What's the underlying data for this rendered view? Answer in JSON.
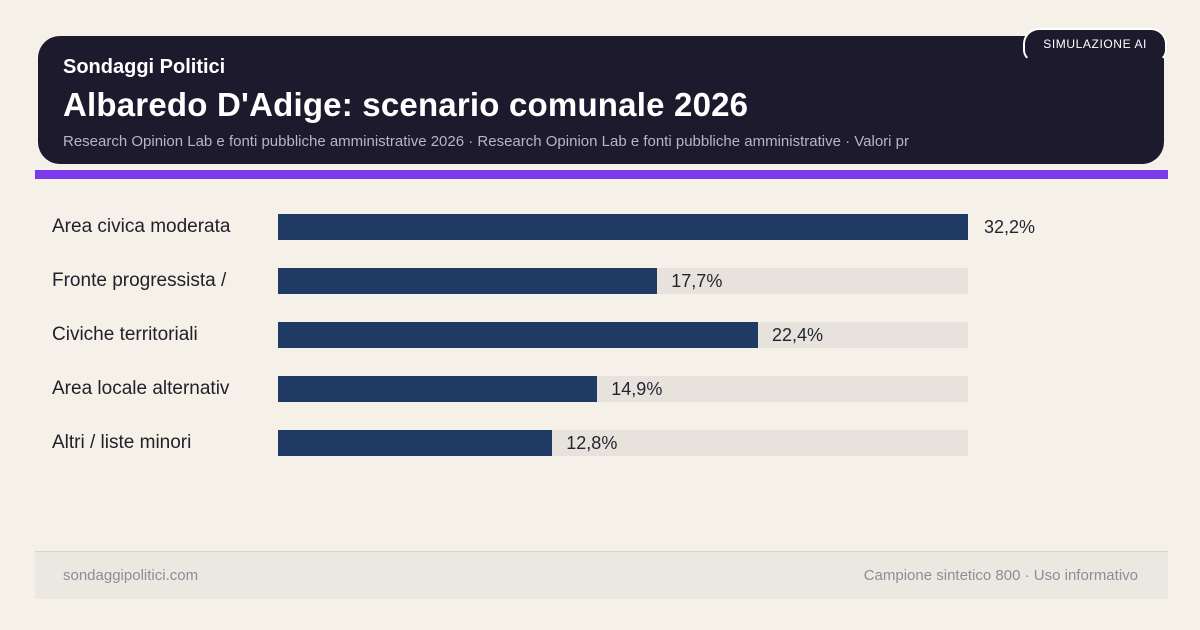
{
  "badge": {
    "label": "SIMULAZIONE AI"
  },
  "header": {
    "kicker": "Sondaggi Politici",
    "title": "Albaredo D'Adige: scenario comunale 2026",
    "subtitle": "Research Opinion Lab e fonti pubbliche amministrative 2026 · Research Opinion Lab e fonti pubbliche amministrative · Valori pr"
  },
  "chart_data": {
    "type": "bar",
    "orientation": "horizontal",
    "title": "Albaredo D'Adige: scenario comunale 2026",
    "categories": [
      "Area civica moderata",
      "Fronte progressista /",
      "Civiche territoriali",
      "Area locale alternativ",
      "Altri / liste minori"
    ],
    "values": [
      32.2,
      17.7,
      22.4,
      14.9,
      12.8
    ],
    "value_labels": [
      "32,2%",
      "17,7%",
      "22,4%",
      "14,9%",
      "12,8%"
    ],
    "unit": "%",
    "max_value": 32.2,
    "xlim": [
      0,
      32.2
    ],
    "grid": false,
    "legend": false
  },
  "footer": {
    "left": "sondaggipolitici.com",
    "right": "Campione sintetico 800 · Uso informativo"
  },
  "colors": {
    "bg": "#f5f1e8",
    "card": "#1d1a2e",
    "accent": "#7c3aed",
    "bar": "#1f3a63",
    "track": "#e7e3dc"
  }
}
